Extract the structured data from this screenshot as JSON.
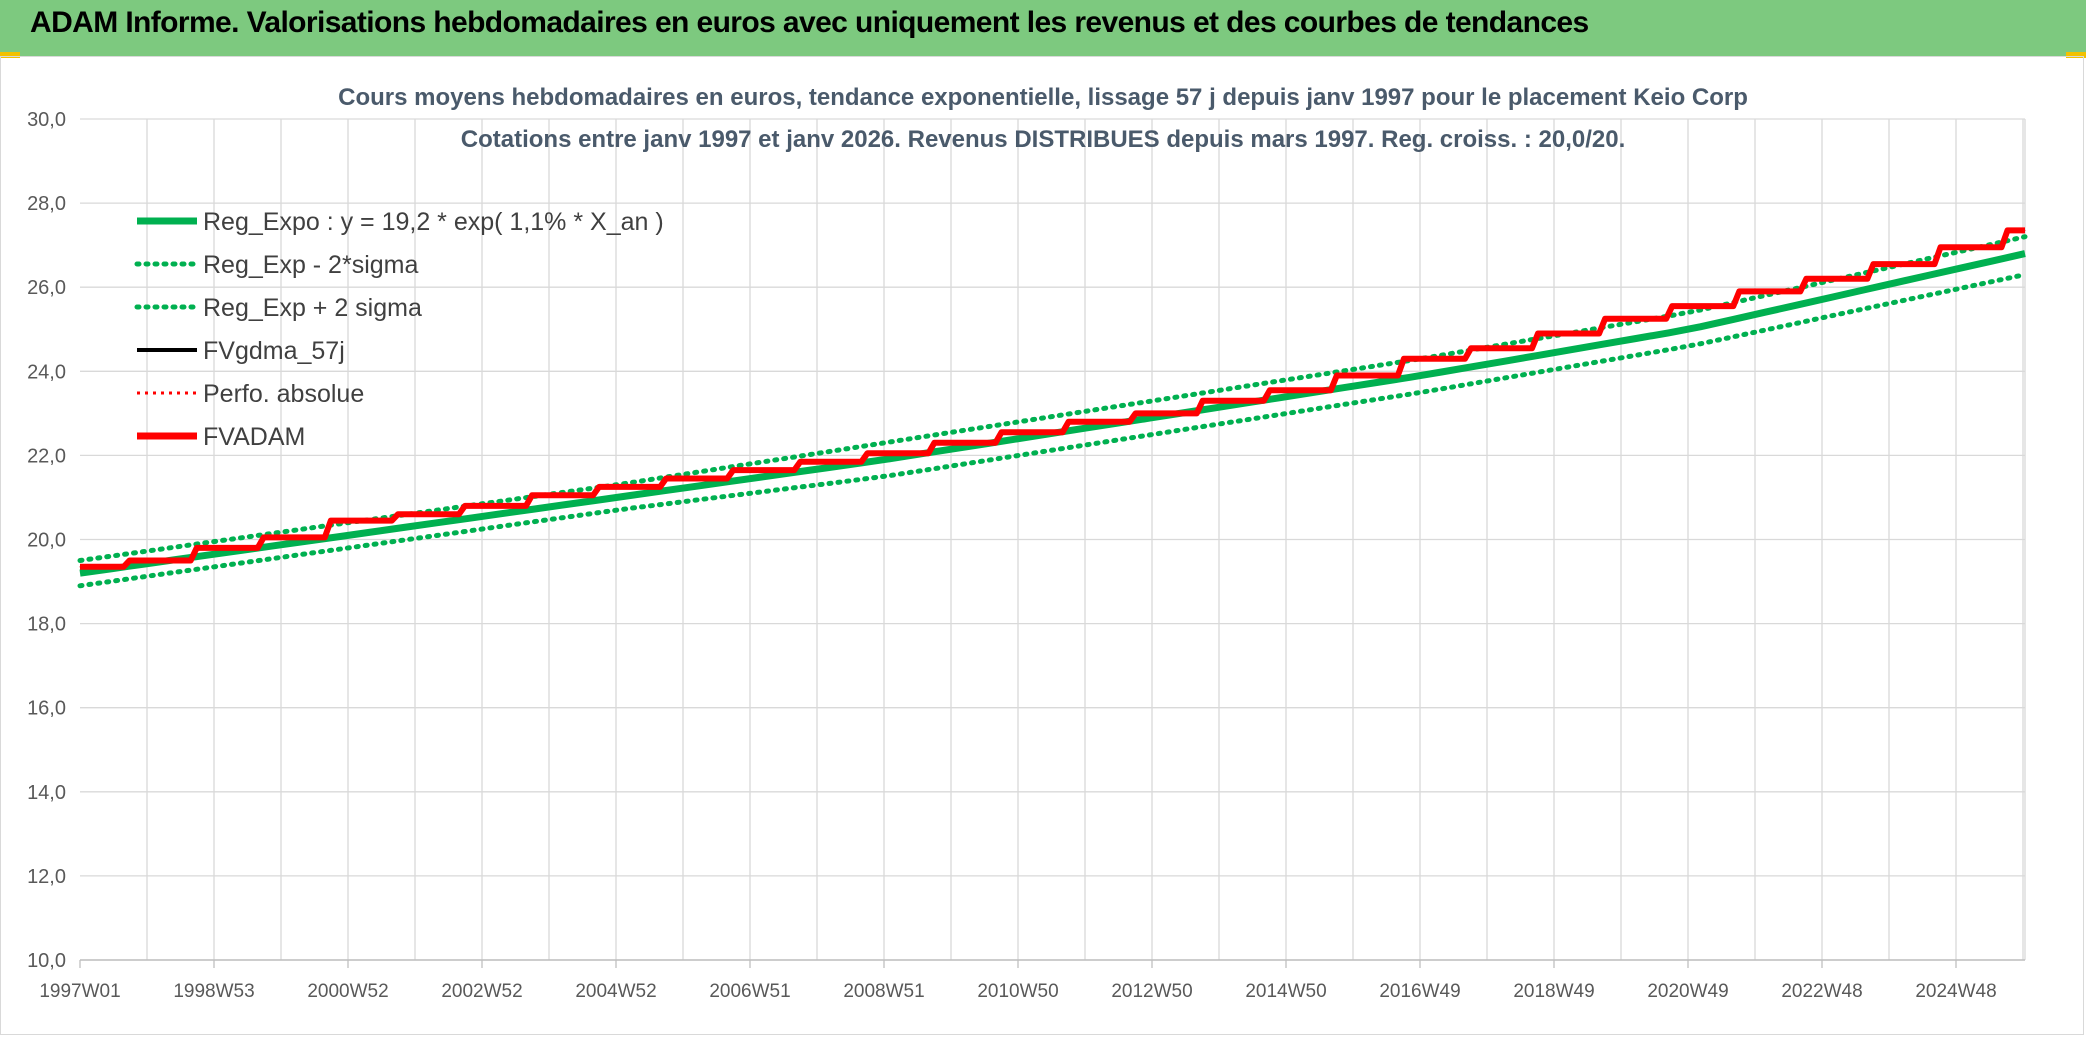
{
  "header": {
    "title": "ADAM Informe. Valorisations hebdomadaires en euros avec uniquement les revenus et des courbes de tendances"
  },
  "colors": {
    "header_bg": "#7dc97f",
    "regression": "#00b050",
    "fvgdma": "#000000",
    "fvadam": "#ff0000",
    "perfo": "#ff0000",
    "grid": "#d9d9d9"
  },
  "chart_data": {
    "type": "line",
    "title_line1": "Cours moyens hebdomadaires en euros, tendance exponentielle, lissage 57 j depuis janv 1997 pour le placement Keio Corp",
    "title_line2": "Cotations entre janv 1997 et janv 2026. Revenus DISTRIBUES depuis mars 1997. Reg. croiss. : 20,0/20.",
    "ylim": [
      10,
      30
    ],
    "y_ticks": [
      "10,0",
      "12,0",
      "14,0",
      "16,0",
      "18,0",
      "20,0",
      "22,0",
      "24,0",
      "26,0",
      "28,0",
      "30,0"
    ],
    "x_ticks": [
      "1997W01",
      "1998W53",
      "2000W52",
      "2002W52",
      "2004W52",
      "2006W51",
      "2008W51",
      "2010W50",
      "2012W50",
      "2014W50",
      "2016W49",
      "2018W49",
      "2020W49",
      "2022W48",
      "2024W48"
    ],
    "x_range_years": [
      1997.0,
      2026.0
    ],
    "legend_position": "top-left",
    "grid": true,
    "legend": [
      {
        "label": "Reg_Expo : y = 19,2 * exp( 1,1% *  X_an )",
        "style": "solid-thick",
        "color": "#00b050"
      },
      {
        "label": "Reg_Exp - 2*sigma",
        "style": "dotted",
        "color": "#00b050"
      },
      {
        "label": "Reg_Exp + 2 sigma",
        "style": "dotted",
        "color": "#00b050"
      },
      {
        "label": "FVgdma_57j",
        "style": "solid",
        "color": "#000000"
      },
      {
        "label": "Perfo. absolue",
        "style": "dotted-thin",
        "color": "#ff0000"
      },
      {
        "label": "FVADAM",
        "style": "solid-thick",
        "color": "#ff0000"
      }
    ],
    "series": [
      {
        "name": "Reg_Expo : y = 19,2 * exp( 1,1% *  X_an )",
        "x": [
          1997.0,
          2001.0,
          2005.0,
          2009.0,
          2013.0,
          2017.0,
          2021.0,
          2026.0
        ],
        "values": [
          19.2,
          20.1,
          21.0,
          21.9,
          22.9,
          23.9,
          25.0,
          26.8
        ]
      },
      {
        "name": "Reg_Exp - 2*sigma",
        "x": [
          1997.0,
          2001.0,
          2005.0,
          2009.0,
          2013.0,
          2017.0,
          2021.0,
          2026.0
        ],
        "values": [
          18.9,
          19.8,
          20.7,
          21.5,
          22.5,
          23.5,
          24.6,
          26.3
        ]
      },
      {
        "name": "Reg_Exp + 2 sigma",
        "x": [
          1997.0,
          2001.0,
          2005.0,
          2009.0,
          2013.0,
          2017.0,
          2021.0,
          2026.0
        ],
        "values": [
          19.5,
          20.4,
          21.3,
          22.3,
          23.3,
          24.3,
          25.4,
          27.2
        ]
      },
      {
        "name": "FVgdma_57j",
        "x": [
          1997.0,
          1998.0,
          1999.0,
          2000.0,
          2001.0,
          2002.0,
          2003.0,
          2004.0,
          2005.0,
          2006.0,
          2007.0,
          2008.0,
          2009.0,
          2010.0,
          2011.0,
          2012.0,
          2013.0,
          2014.0,
          2015.0,
          2016.0,
          2017.0,
          2018.0,
          2019.0,
          2020.0,
          2021.0,
          2022.0,
          2023.0,
          2024.0,
          2025.0,
          2026.0
        ],
        "values": [
          19.35,
          19.5,
          19.8,
          20.05,
          20.45,
          20.6,
          20.8,
          21.05,
          21.25,
          21.45,
          21.65,
          21.85,
          22.05,
          22.3,
          22.55,
          22.8,
          23.0,
          23.3,
          23.55,
          23.9,
          24.3,
          24.55,
          24.9,
          25.25,
          25.55,
          25.9,
          26.2,
          26.55,
          26.95,
          27.35
        ]
      },
      {
        "name": "FVADAM",
        "x": [
          1997.0,
          1998.0,
          1999.0,
          2000.0,
          2001.0,
          2002.0,
          2003.0,
          2004.0,
          2005.0,
          2006.0,
          2007.0,
          2008.0,
          2009.0,
          2010.0,
          2011.0,
          2012.0,
          2013.0,
          2014.0,
          2015.0,
          2016.0,
          2017.0,
          2018.0,
          2019.0,
          2020.0,
          2021.0,
          2022.0,
          2023.0,
          2024.0,
          2025.0,
          2026.0
        ],
        "values": [
          19.35,
          19.5,
          19.8,
          20.05,
          20.45,
          20.6,
          20.8,
          21.05,
          21.25,
          21.45,
          21.65,
          21.85,
          22.05,
          22.3,
          22.55,
          22.8,
          23.0,
          23.3,
          23.55,
          23.9,
          24.3,
          24.55,
          24.9,
          25.25,
          25.55,
          25.9,
          26.2,
          26.55,
          26.95,
          27.35
        ]
      }
    ]
  }
}
